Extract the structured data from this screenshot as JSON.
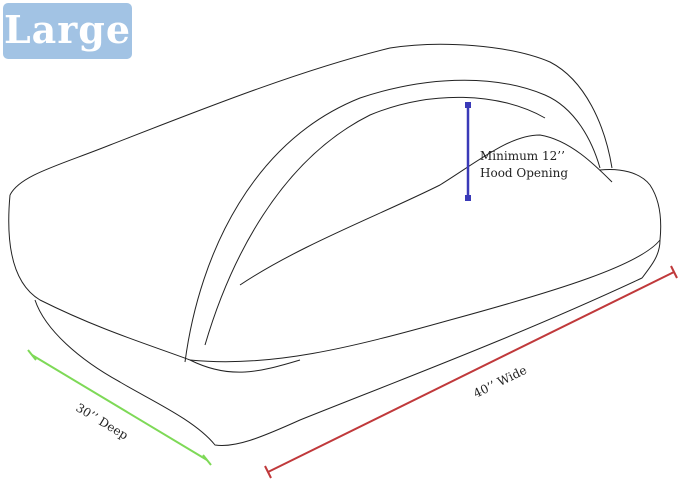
{
  "badge": {
    "label": "Large",
    "color": "#a2c3e4"
  },
  "dimensions": {
    "hood": {
      "label_line1": "Minimum 12’’",
      "label_line2": "Hood Opening",
      "color": "#3a3ab8"
    },
    "depth": {
      "label": "30’’ Deep",
      "color": "#7ed957"
    },
    "width": {
      "label": "40’’ Wide",
      "color": "#c0393b"
    }
  }
}
